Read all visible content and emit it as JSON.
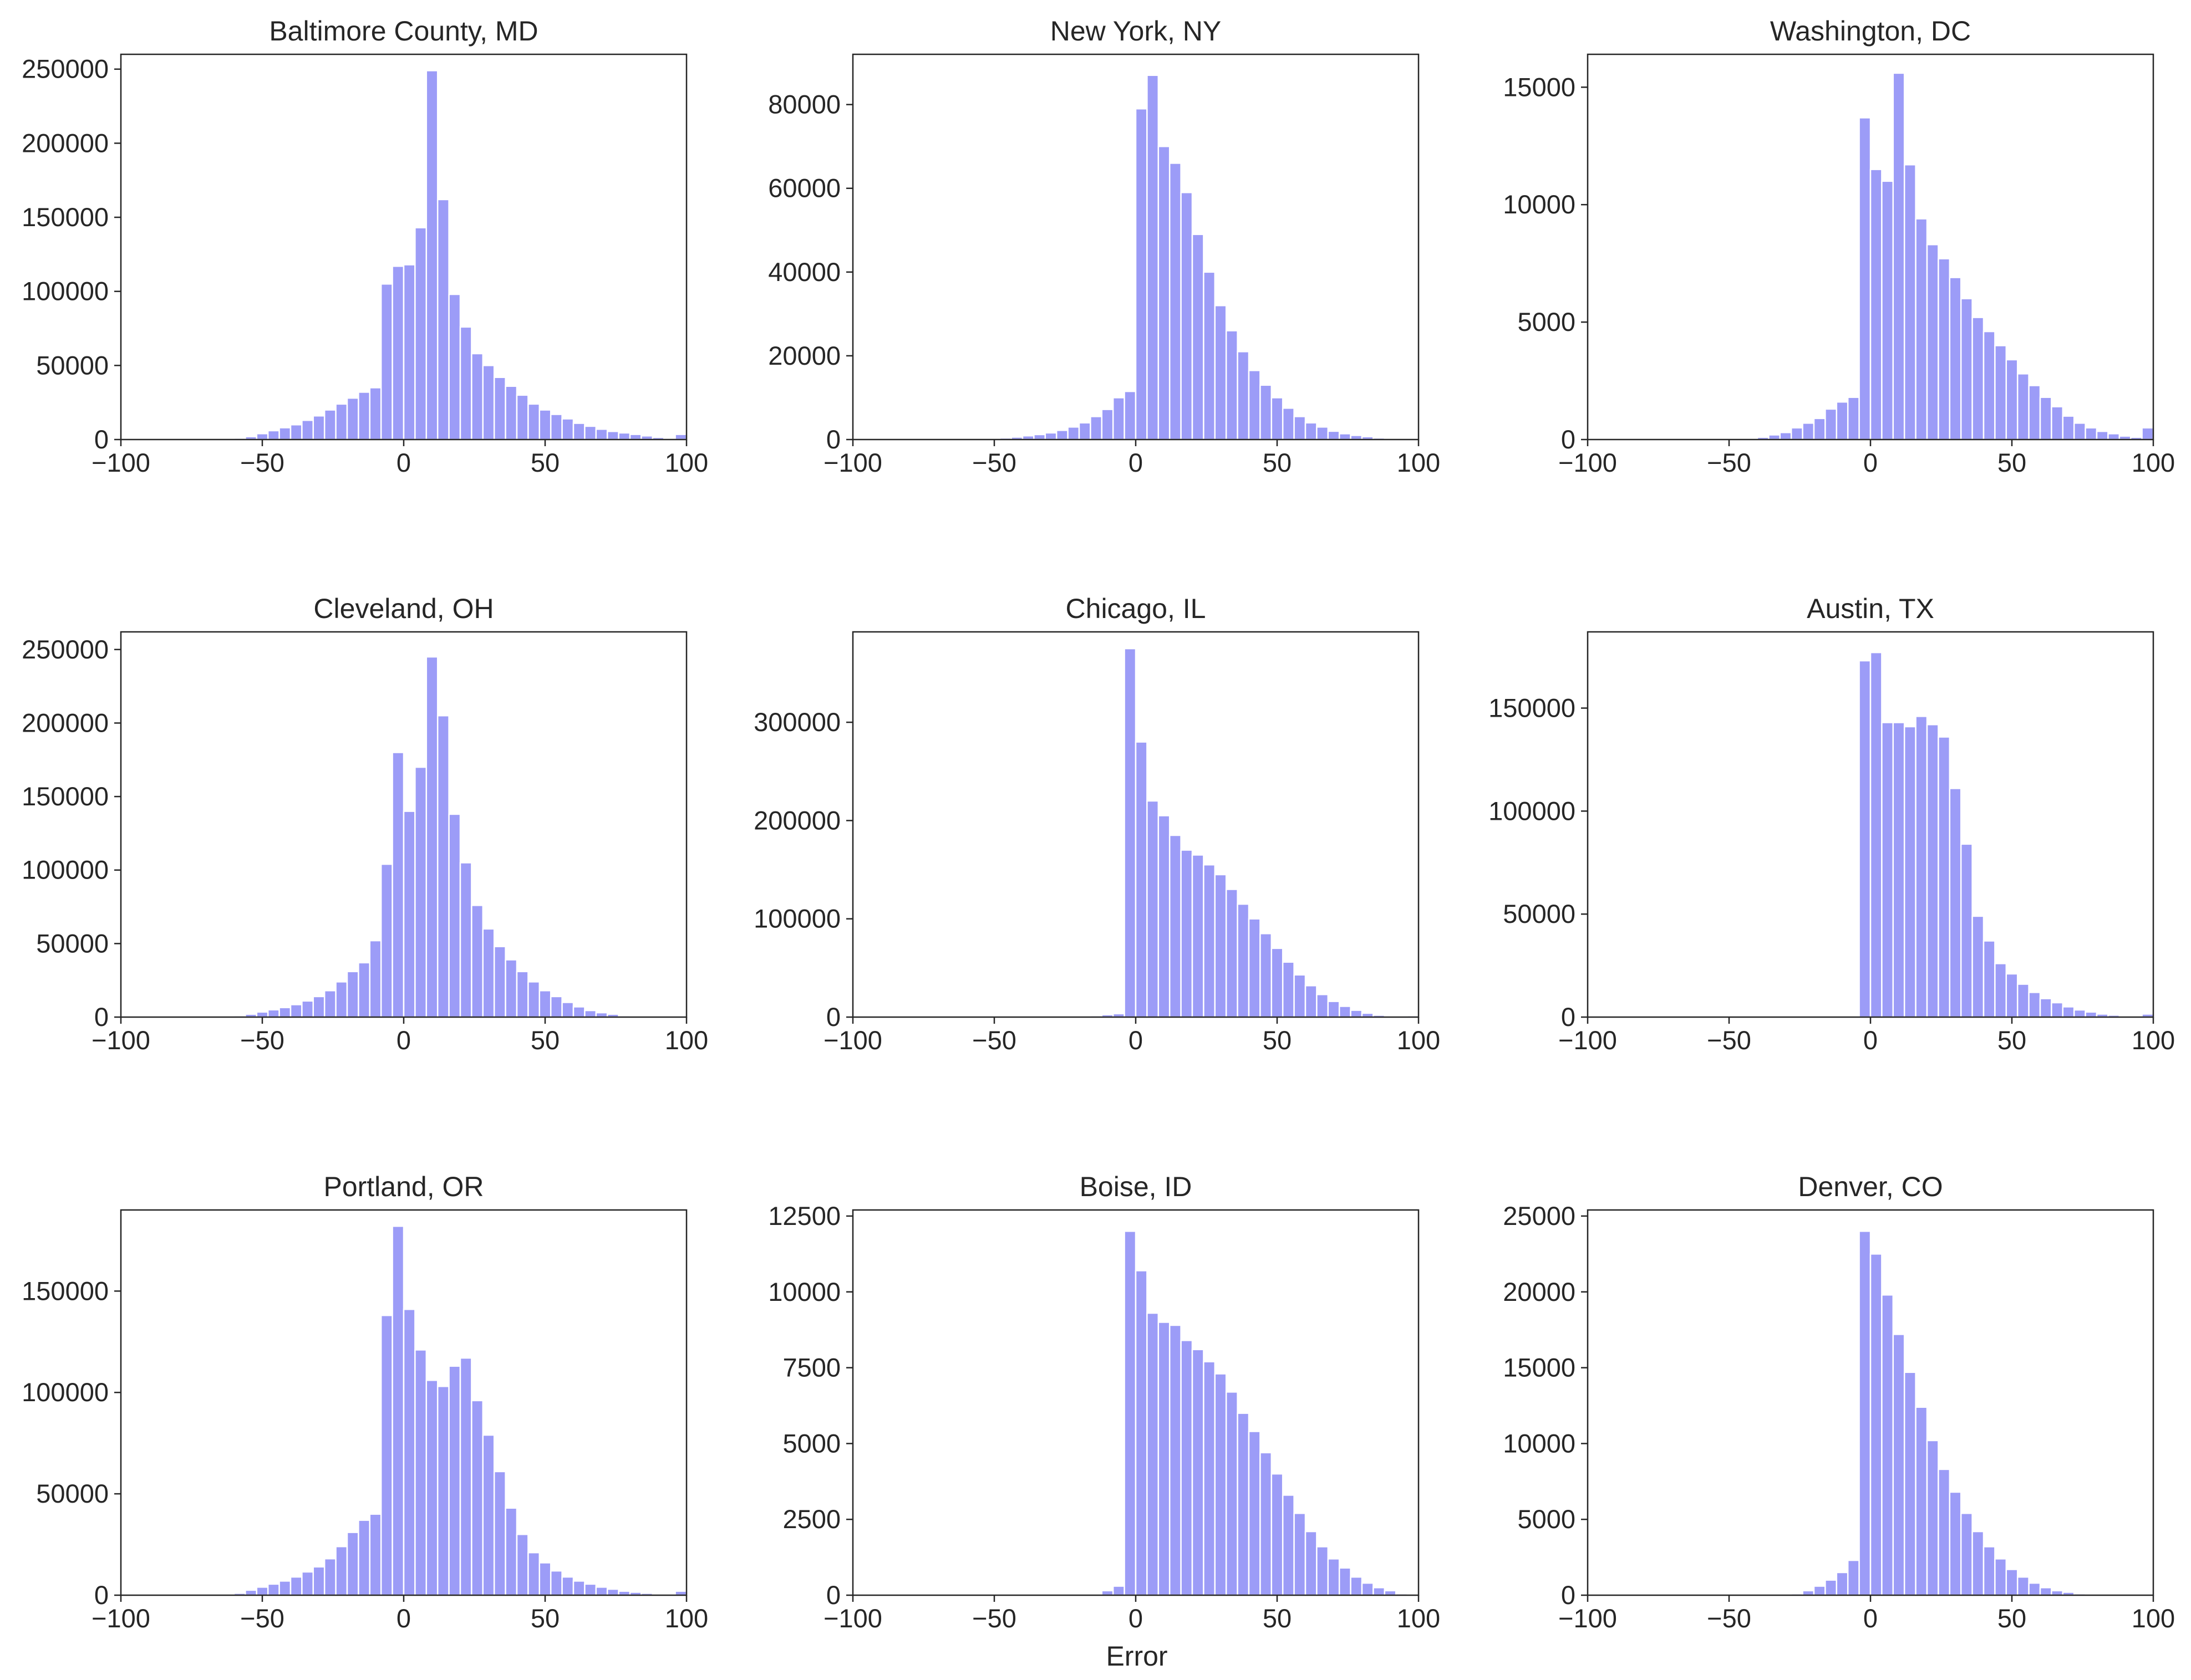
{
  "figure": {
    "xlabel": "Error",
    "bar_color": "#9c9cf7",
    "bar_edge_color": "#ffffff",
    "axis_color": "#262626"
  },
  "chart_data": [
    {
      "type": "bar",
      "title": "Baltimore County, MD",
      "xlabel": "",
      "ylabel": "",
      "xlim": [
        -100,
        100
      ],
      "ylim": [
        0,
        260000
      ],
      "xticks": [
        -100,
        -50,
        0,
        50,
        100
      ],
      "xtick_labels": [
        "−100",
        "−50",
        "0",
        "50",
        "100"
      ],
      "yticks": [
        0,
        50000,
        100000,
        150000,
        200000,
        250000
      ],
      "ytick_labels": [
        "0",
        "50000",
        "100000",
        "150000",
        "200000",
        "250000"
      ],
      "bin_start": -100,
      "bin_width": 4,
      "values": [
        0,
        0,
        0,
        0,
        0,
        0,
        0,
        0,
        0,
        500,
        1000,
        2000,
        4000,
        6000,
        8000,
        10000,
        13000,
        16000,
        20000,
        24000,
        28000,
        32000,
        35000,
        105000,
        117000,
        118000,
        143000,
        249000,
        162000,
        98000,
        76000,
        58000,
        50000,
        42000,
        36000,
        30000,
        24000,
        20000,
        17000,
        14000,
        11000,
        9000,
        7000,
        5500,
        4500,
        3500,
        2500,
        1500,
        800,
        3500
      ]
    },
    {
      "type": "bar",
      "title": "New York, NY",
      "xlabel": "",
      "ylabel": "",
      "xlim": [
        -100,
        100
      ],
      "ylim": [
        0,
        92000
      ],
      "xticks": [
        -100,
        -50,
        0,
        50,
        100
      ],
      "xtick_labels": [
        "−100",
        "−50",
        "0",
        "50",
        "100"
      ],
      "yticks": [
        0,
        20000,
        40000,
        60000,
        80000
      ],
      "ytick_labels": [
        "0",
        "20000",
        "40000",
        "60000",
        "80000"
      ],
      "bin_start": -100,
      "bin_width": 4,
      "values": [
        0,
        0,
        0,
        0,
        0,
        0,
        0,
        0,
        0,
        0,
        0,
        100,
        200,
        400,
        600,
        900,
        1200,
        1600,
        2200,
        3000,
        4000,
        5500,
        7200,
        10000,
        11500,
        79000,
        87000,
        70000,
        66000,
        59000,
        49000,
        40000,
        32000,
        26000,
        21000,
        16500,
        13000,
        10000,
        7500,
        5500,
        4000,
        3000,
        2000,
        1400,
        1000,
        700,
        400,
        200,
        100,
        0
      ]
    },
    {
      "type": "bar",
      "title": "Washington, DC",
      "xlabel": "",
      "ylabel": "",
      "xlim": [
        -100,
        100
      ],
      "ylim": [
        0,
        16400
      ],
      "xticks": [
        -100,
        -50,
        0,
        50,
        100
      ],
      "xtick_labels": [
        "−100",
        "−50",
        "0",
        "50",
        "100"
      ],
      "yticks": [
        0,
        5000,
        10000,
        15000
      ],
      "ytick_labels": [
        "0",
        "5000",
        "10000",
        "15000"
      ],
      "bin_start": -100,
      "bin_width": 4,
      "values": [
        0,
        0,
        0,
        0,
        0,
        0,
        0,
        0,
        0,
        0,
        0,
        0,
        0,
        0,
        50,
        100,
        200,
        300,
        500,
        700,
        900,
        1300,
        1600,
        1800,
        13700,
        11500,
        11000,
        15600,
        11700,
        9400,
        8300,
        7700,
        6900,
        6000,
        5200,
        4600,
        4000,
        3400,
        2800,
        2300,
        1800,
        1400,
        1000,
        700,
        500,
        350,
        250,
        150,
        100,
        500
      ]
    },
    {
      "type": "bar",
      "title": "Cleveland, OH",
      "xlabel": "",
      "ylabel": "",
      "xlim": [
        -100,
        100
      ],
      "ylim": [
        0,
        262000
      ],
      "xticks": [
        -100,
        -50,
        0,
        50,
        100
      ],
      "xtick_labels": [
        "−100",
        "−50",
        "0",
        "50",
        "100"
      ],
      "yticks": [
        0,
        50000,
        100000,
        150000,
        200000,
        250000
      ],
      "ytick_labels": [
        "0",
        "50000",
        "100000",
        "150000",
        "200000",
        "250000"
      ],
      "bin_start": -100,
      "bin_width": 4,
      "values": [
        0,
        0,
        0,
        0,
        0,
        0,
        0,
        0,
        0,
        0,
        1000,
        2000,
        3500,
        5000,
        6500,
        8500,
        11000,
        14000,
        18000,
        24000,
        31000,
        37000,
        52000,
        104000,
        180000,
        140000,
        170000,
        245000,
        205000,
        138000,
        105000,
        76000,
        60000,
        48000,
        39000,
        31000,
        24000,
        18000,
        14000,
        10000,
        7000,
        4500,
        3000,
        2000,
        1000,
        500,
        200,
        100,
        0,
        0
      ]
    },
    {
      "type": "bar",
      "title": "Chicago, IL",
      "xlabel": "",
      "ylabel": "",
      "xlim": [
        -100,
        100
      ],
      "ylim": [
        0,
        392000
      ],
      "xticks": [
        -100,
        -50,
        0,
        50,
        100
      ],
      "xtick_labels": [
        "−100",
        "−50",
        "0",
        "50",
        "100"
      ],
      "yticks": [
        0,
        100000,
        200000,
        300000
      ],
      "ytick_labels": [
        "0",
        "100000",
        "200000",
        "300000"
      ],
      "bin_start": -100,
      "bin_width": 4,
      "values": [
        0,
        0,
        0,
        0,
        0,
        0,
        0,
        0,
        0,
        0,
        0,
        0,
        0,
        0,
        0,
        0,
        0,
        0,
        0,
        500,
        1000,
        1500,
        2500,
        3500,
        375000,
        280000,
        220000,
        205000,
        185000,
        170000,
        165000,
        155000,
        145000,
        130000,
        115000,
        100000,
        85000,
        70000,
        56000,
        43000,
        32000,
        23000,
        16000,
        11000,
        7000,
        4000,
        2000,
        1000,
        500,
        1500
      ]
    },
    {
      "type": "bar",
      "title": "Austin, TX",
      "xlabel": "",
      "ylabel": "",
      "xlim": [
        -100,
        100
      ],
      "ylim": [
        0,
        187000
      ],
      "xticks": [
        -100,
        -50,
        0,
        50,
        100
      ],
      "xtick_labels": [
        "−100",
        "−50",
        "0",
        "50",
        "100"
      ],
      "yticks": [
        0,
        50000,
        100000,
        150000
      ],
      "ytick_labels": [
        "0",
        "50000",
        "100000",
        "150000"
      ],
      "bin_start": -100,
      "bin_width": 4,
      "values": [
        0,
        0,
        0,
        0,
        0,
        0,
        0,
        0,
        0,
        0,
        0,
        0,
        0,
        0,
        0,
        0,
        0,
        0,
        0,
        0,
        0,
        0,
        0,
        0,
        173000,
        177000,
        143000,
        143000,
        141000,
        146000,
        142000,
        136000,
        111000,
        84000,
        49000,
        37000,
        26000,
        21000,
        16000,
        12000,
        9000,
        7000,
        5000,
        3500,
        2500,
        1500,
        1000,
        500,
        200,
        1500
      ]
    },
    {
      "type": "bar",
      "title": "Portland, OR",
      "xlabel": "",
      "ylabel": "",
      "xlim": [
        -100,
        100
      ],
      "ylim": [
        0,
        190000
      ],
      "xticks": [
        -100,
        -50,
        0,
        50,
        100
      ],
      "xtick_labels": [
        "−100",
        "−50",
        "0",
        "50",
        "100"
      ],
      "yticks": [
        0,
        50000,
        100000,
        150000
      ],
      "ytick_labels": [
        "0",
        "50000",
        "100000",
        "150000"
      ],
      "bin_start": -100,
      "bin_width": 4,
      "values": [
        0,
        0,
        0,
        0,
        0,
        0,
        0,
        0,
        0,
        0,
        1000,
        2500,
        4000,
        5500,
        7000,
        9000,
        11500,
        14000,
        18000,
        24000,
        31000,
        37000,
        40000,
        138000,
        182000,
        141000,
        121000,
        106000,
        103000,
        113000,
        117000,
        96000,
        79000,
        61000,
        43000,
        30000,
        21000,
        16000,
        12000,
        9000,
        7000,
        5500,
        4000,
        3000,
        2000,
        1500,
        1000,
        500,
        200,
        2000
      ]
    },
    {
      "type": "bar",
      "title": "Boise, ID",
      "xlabel": "",
      "ylabel": "",
      "xlim": [
        -100,
        100
      ],
      "ylim": [
        0,
        12700
      ],
      "xticks": [
        -100,
        -50,
        0,
        50,
        100
      ],
      "xtick_labels": [
        "−100",
        "−50",
        "0",
        "50",
        "100"
      ],
      "yticks": [
        0,
        2500,
        5000,
        7500,
        10000,
        12500
      ],
      "ytick_labels": [
        "0",
        "2500",
        "5000",
        "7500",
        "10000",
        "12500"
      ],
      "bin_start": -100,
      "bin_width": 4,
      "values": [
        0,
        0,
        0,
        0,
        0,
        0,
        0,
        0,
        0,
        0,
        0,
        0,
        0,
        0,
        0,
        0,
        0,
        0,
        0,
        0,
        0,
        0,
        150,
        300,
        12000,
        10700,
        9300,
        9000,
        8900,
        8400,
        8100,
        7700,
        7300,
        6700,
        6000,
        5400,
        4700,
        4000,
        3300,
        2700,
        2100,
        1600,
        1200,
        900,
        600,
        400,
        250,
        150,
        50,
        0
      ]
    },
    {
      "type": "bar",
      "title": "Denver, CO",
      "xlabel": "",
      "ylabel": "",
      "xlim": [
        -100,
        100
      ],
      "ylim": [
        0,
        25400
      ],
      "xticks": [
        -100,
        -50,
        0,
        50,
        100
      ],
      "xtick_labels": [
        "−100",
        "−50",
        "0",
        "50",
        "100"
      ],
      "yticks": [
        0,
        5000,
        10000,
        15000,
        20000,
        25000
      ],
      "ytick_labels": [
        "0",
        "5000",
        "10000",
        "15000",
        "20000",
        "25000"
      ],
      "bin_start": -100,
      "bin_width": 4,
      "values": [
        0,
        0,
        0,
        0,
        0,
        0,
        0,
        0,
        0,
        0,
        0,
        0,
        0,
        0,
        0,
        0,
        0,
        0,
        100,
        300,
        600,
        1000,
        1500,
        2300,
        24000,
        22500,
        19800,
        17200,
        14700,
        12400,
        10200,
        8300,
        6800,
        5400,
        4200,
        3200,
        2400,
        1700,
        1200,
        800,
        500,
        300,
        200,
        100,
        50,
        0,
        0,
        0,
        0,
        0
      ]
    }
  ]
}
